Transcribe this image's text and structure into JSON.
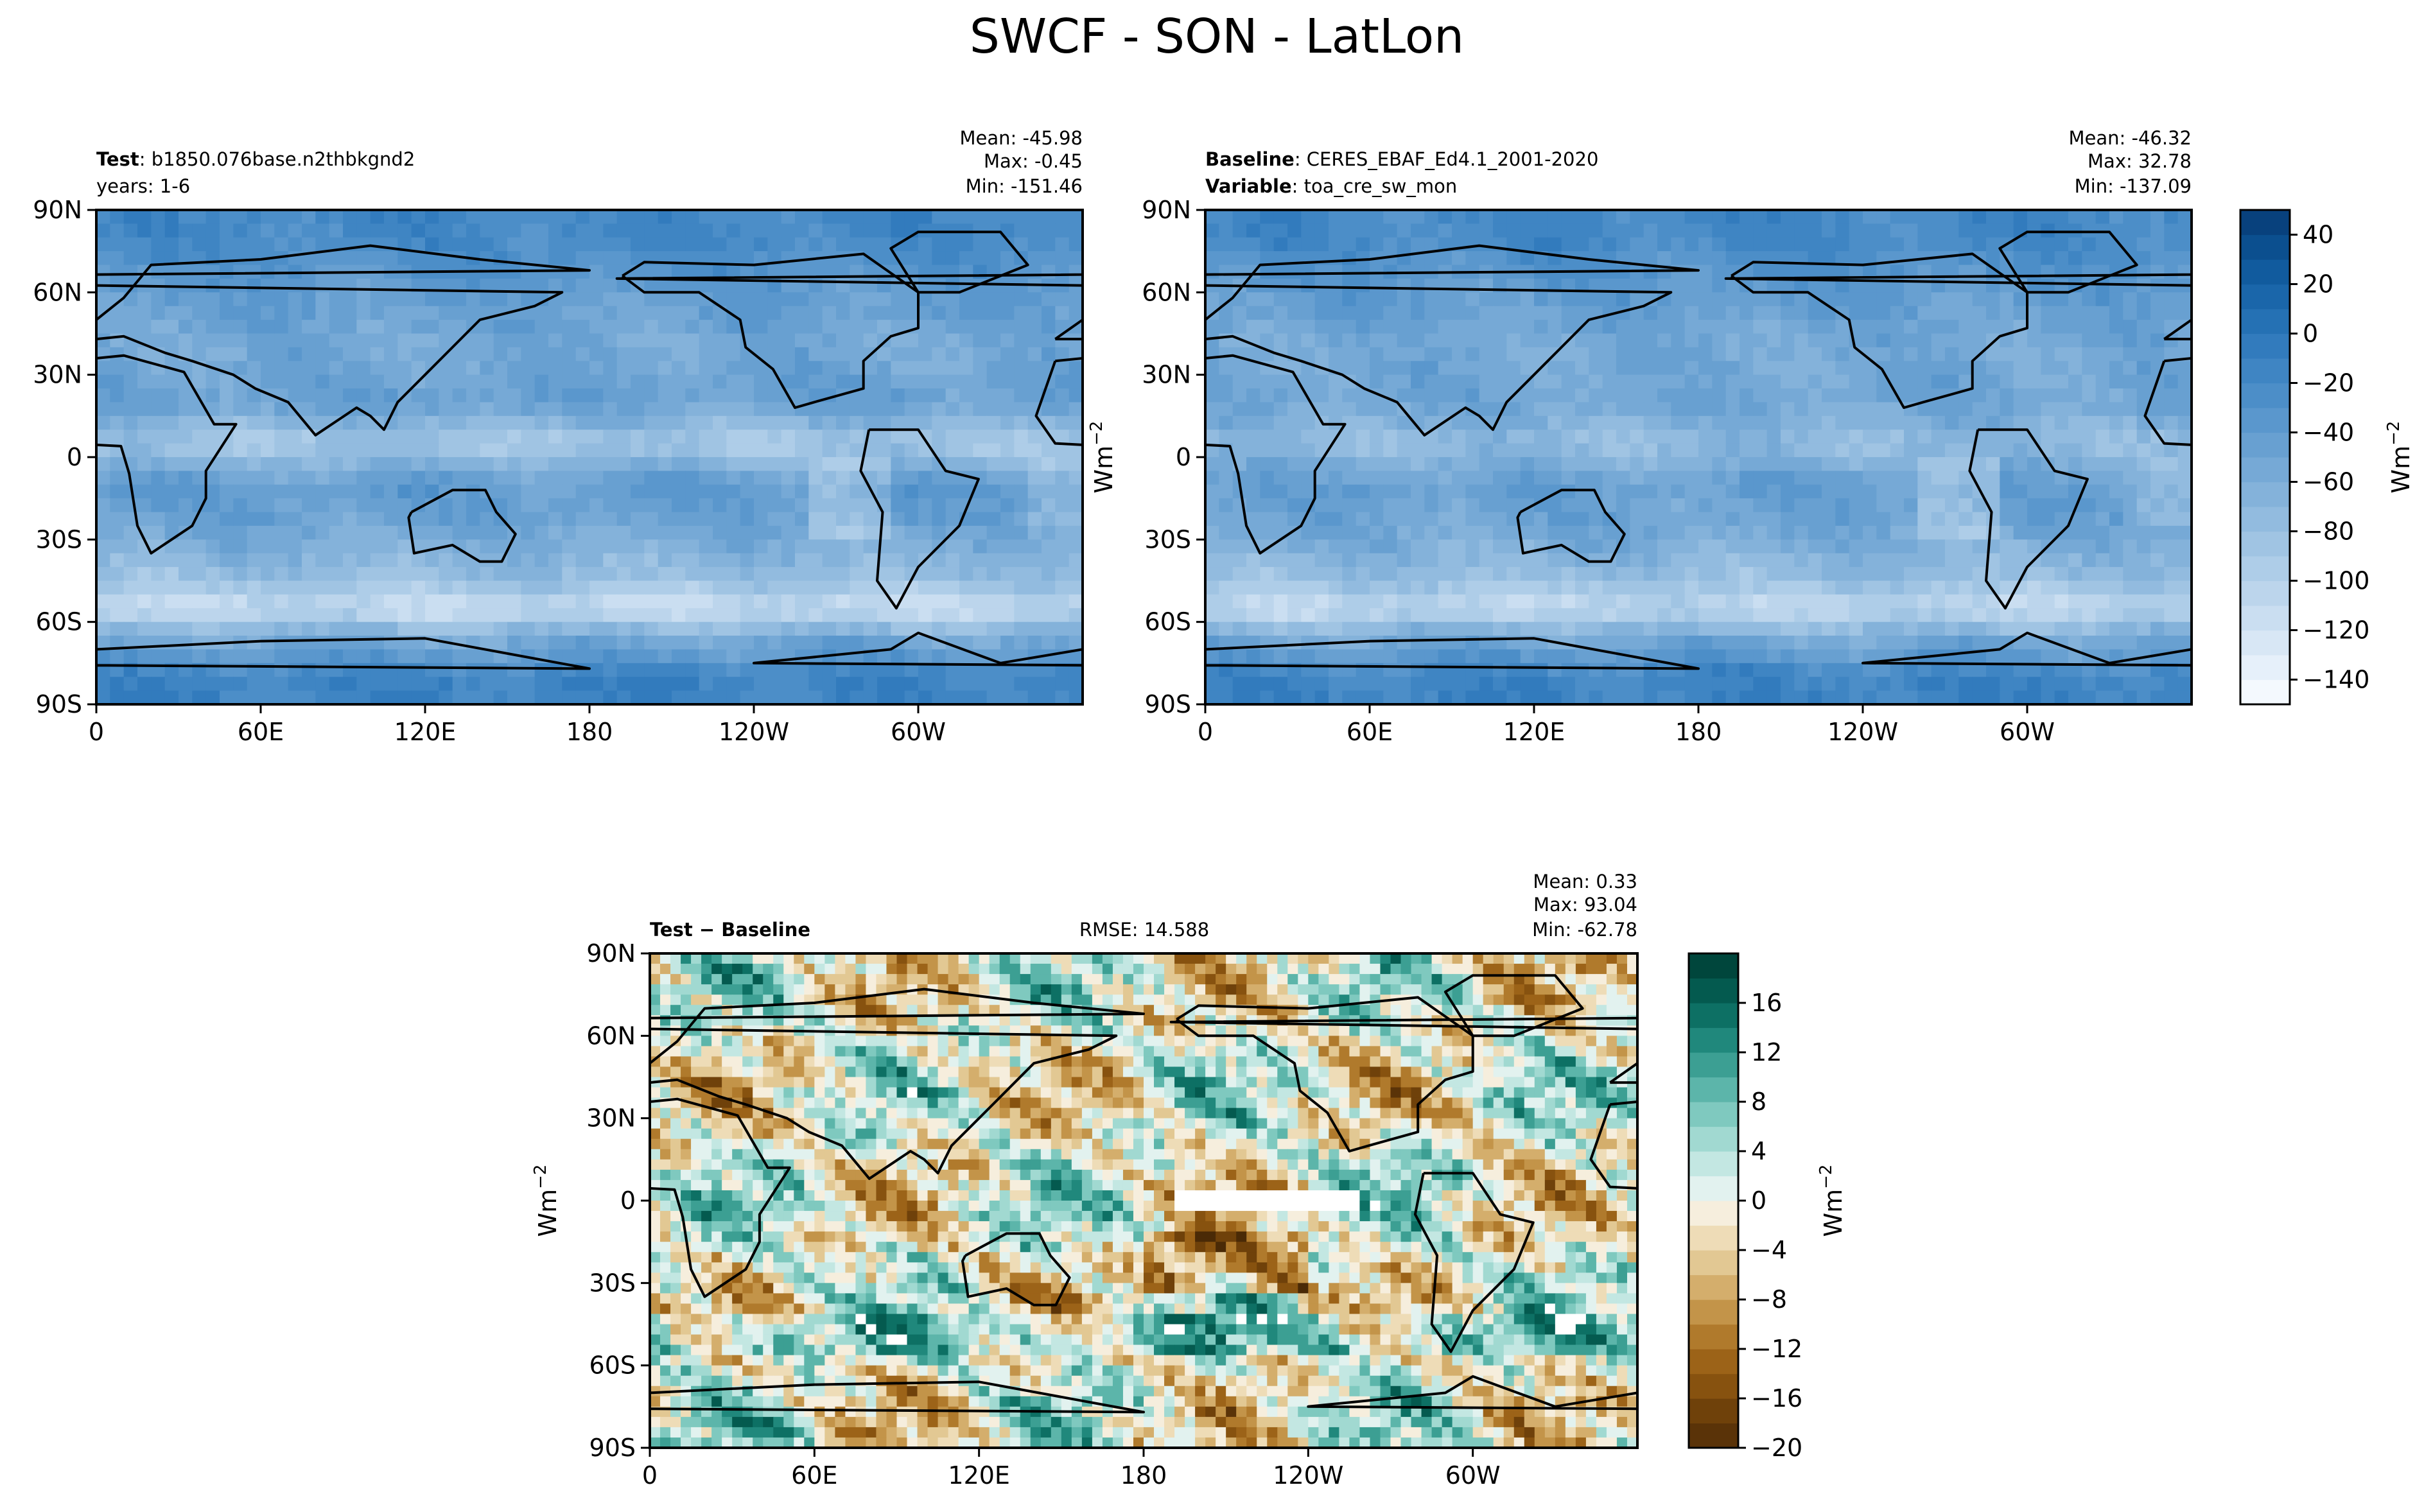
{
  "figure": {
    "title": "SWCF - SON - LatLon",
    "lat_ticks": [
      "90N",
      "60N",
      "30N",
      "0",
      "30S",
      "60S",
      "90S"
    ],
    "lon_ticks": [
      "0",
      "60E",
      "120E",
      "180",
      "120W",
      "60W"
    ],
    "unit_label": "Wm",
    "unit_exponent": "−2"
  },
  "panels": {
    "test": {
      "label_bold": "Test",
      "label_text": ": b1850.076base.n2thbkgnd2",
      "sub_text": "years: 1-6",
      "mean": "Mean: -45.98",
      "max": "Max: -0.45",
      "min": "Min: -151.46"
    },
    "baseline": {
      "label_bold": "Baseline",
      "label_text": ": CERES_EBAF_Ed4.1_2001-2020",
      "var_bold": "Variable",
      "var_text": ": toa_cre_sw_mon",
      "mean": "Mean: -46.32",
      "max": "Max: 32.78",
      "min": "Min: -137.09"
    },
    "diff": {
      "label_bold": "Test − Baseline",
      "rmse": "RMSE: 14.588",
      "mean": "Mean:  0.33",
      "max": "Max: 93.04",
      "min": "Min: -62.78"
    }
  },
  "chart_data": [
    {
      "type": "heatmap",
      "panel": "test",
      "title": "Test : b1850.076base.n2thbkgnd2",
      "xlabel": "",
      "ylabel": "",
      "xlim": [
        0,
        360
      ],
      "ylim": [
        -90,
        90
      ],
      "colorbar_ref": "abs",
      "stats": {
        "mean": -45.98,
        "max": -0.45,
        "min": -151.46
      },
      "zonal_profile": [
        {
          "lat": 80,
          "value": -20
        },
        {
          "lat": 60,
          "value": -40
        },
        {
          "lat": 40,
          "value": -55
        },
        {
          "lat": 20,
          "value": -45
        },
        {
          "lat": 5,
          "value": -90
        },
        {
          "lat": -10,
          "value": -40
        },
        {
          "lat": -25,
          "value": -50
        },
        {
          "lat": -45,
          "value": -80
        },
        {
          "lat": -55,
          "value": -115
        },
        {
          "lat": -65,
          "value": -60
        },
        {
          "lat": -80,
          "value": -15
        }
      ]
    },
    {
      "type": "heatmap",
      "panel": "baseline",
      "title": "Baseline : CERES_EBAF_Ed4.1_2001-2020",
      "xlabel": "",
      "ylabel": "Wm^-2",
      "xlim": [
        0,
        360
      ],
      "ylim": [
        -90,
        90
      ],
      "colorbar_ref": "abs",
      "stats": {
        "mean": -46.32,
        "max": 32.78,
        "min": -137.09
      },
      "zonal_profile": [
        {
          "lat": 80,
          "value": -20
        },
        {
          "lat": 60,
          "value": -40
        },
        {
          "lat": 40,
          "value": -55
        },
        {
          "lat": 20,
          "value": -50
        },
        {
          "lat": 5,
          "value": -75
        },
        {
          "lat": -10,
          "value": -45
        },
        {
          "lat": -25,
          "value": -50
        },
        {
          "lat": -45,
          "value": -80
        },
        {
          "lat": -55,
          "value": -110
        },
        {
          "lat": -65,
          "value": -60
        },
        {
          "lat": -80,
          "value": -15
        }
      ]
    },
    {
      "type": "heatmap",
      "panel": "diff",
      "title": "Test − Baseline",
      "xlabel": "",
      "ylabel": "Wm^-2",
      "xlim": [
        0,
        360
      ],
      "ylim": [
        -90,
        90
      ],
      "colorbar_ref": "diff",
      "stats": {
        "mean": 0.33,
        "max": 93.04,
        "min": -62.78,
        "rmse": 14.588
      }
    }
  ],
  "colorbars": {
    "abs": {
      "levels": [
        -150,
        -140,
        -130,
        -120,
        -110,
        -100,
        -90,
        -80,
        -70,
        -60,
        -50,
        -40,
        -30,
        -20,
        -10,
        0,
        10,
        20,
        30,
        40
      ],
      "tick_values": [
        40,
        20,
        0,
        -20,
        -40,
        -60,
        -80,
        -100,
        -120,
        -140
      ],
      "tick_labels": [
        "40",
        "20",
        "0",
        "−20",
        "−40",
        "−60",
        "−80",
        "−100",
        "−120",
        "−140"
      ],
      "colors": [
        "#f4f9fe",
        "#e6f0fa",
        "#d8e7f5",
        "#cadef1",
        "#bcd5ec",
        "#aecde8",
        "#a0c4e3",
        "#92bbdf",
        "#84b2da",
        "#76a9d6",
        "#68a0d1",
        "#5a97cd",
        "#4c8ec8",
        "#3f85c3",
        "#327bbd",
        "#2571b4",
        "#1a66aa",
        "#115b9e",
        "#0b4f8f",
        "#08417d"
      ]
    },
    "diff": {
      "levels": [
        -20,
        -18,
        -16,
        -14,
        -12,
        -10,
        -8,
        -6,
        -4,
        -2,
        0,
        2,
        4,
        6,
        8,
        10,
        12,
        14,
        16,
        18
      ],
      "tick_values": [
        16,
        12,
        8,
        4,
        0,
        -4,
        -8,
        -12,
        -16,
        -20
      ],
      "tick_labels": [
        "16",
        "12",
        "8",
        "4",
        "0",
        "−4",
        "−8",
        "−12",
        "−16",
        "−20"
      ],
      "colors": [
        "#5a3308",
        "#6f410a",
        "#87520f",
        "#9c6318",
        "#b07a2c",
        "#c39449",
        "#d4ae6c",
        "#e2c893",
        "#eedcb7",
        "#f6eedd",
        "#e2f2ef",
        "#c3e7e2",
        "#a1d9d1",
        "#7fc9bf",
        "#5cb5aa",
        "#3c9f93",
        "#20887c",
        "#0d7064",
        "#045a4f",
        "#00463c"
      ]
    }
  }
}
